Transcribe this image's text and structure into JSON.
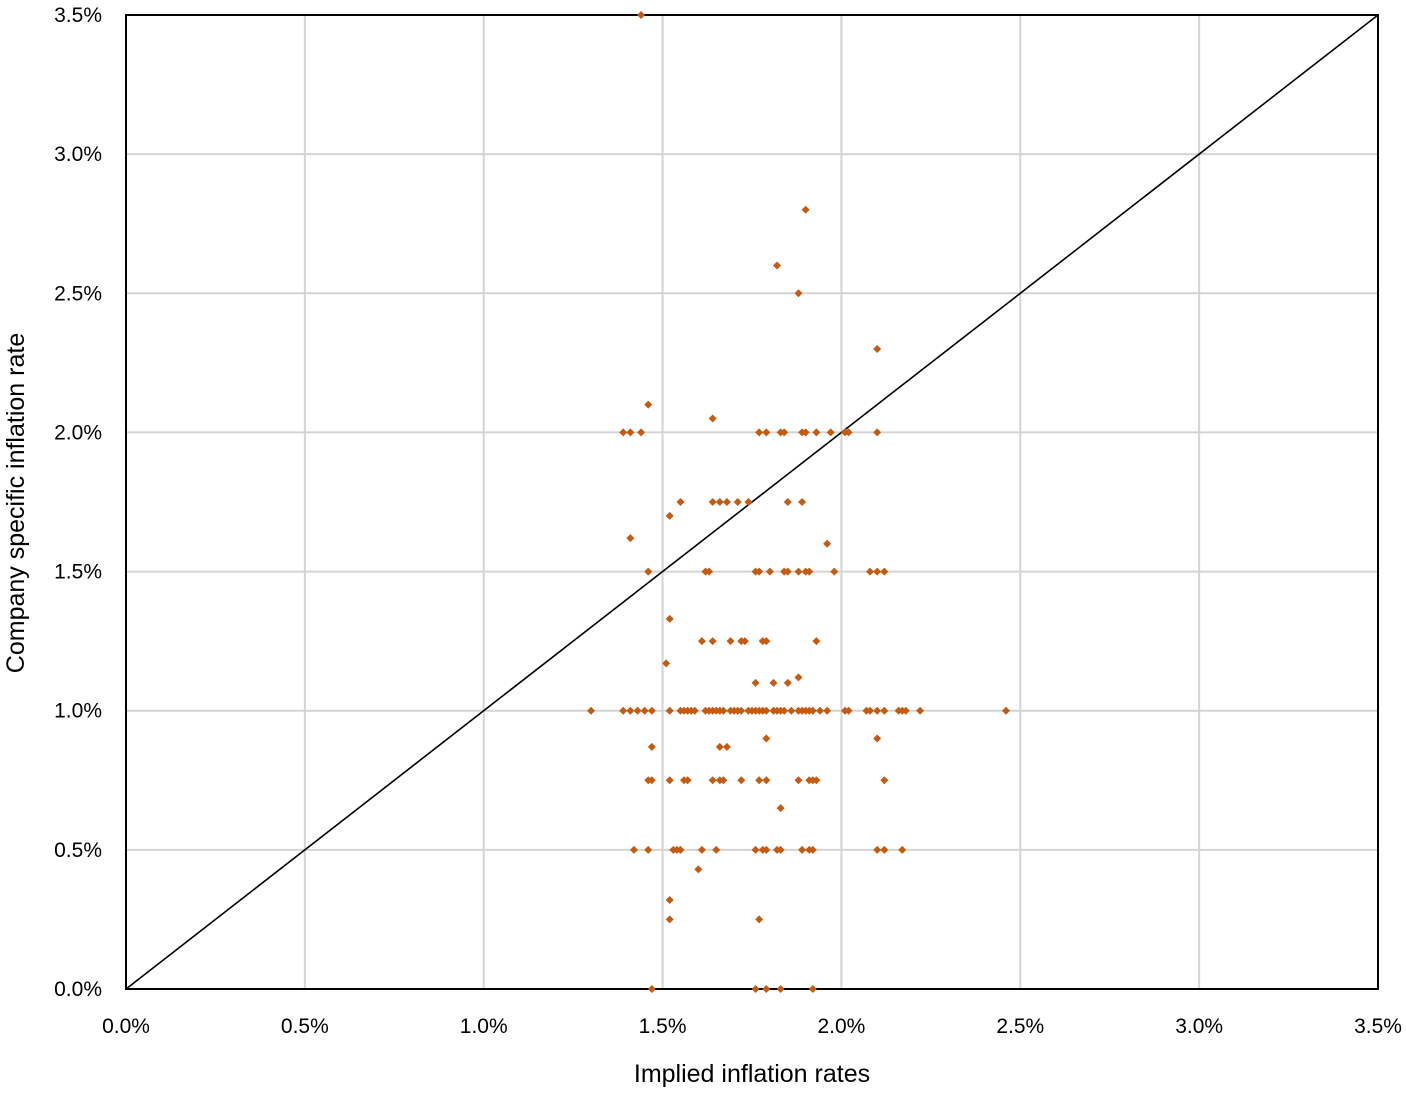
{
  "chart_data": {
    "type": "scatter",
    "xlabel": "Implied inflation rates",
    "ylabel": "Company specific inflation rate",
    "xlim": [
      0,
      3.5
    ],
    "ylim": [
      0,
      3.5
    ],
    "x_ticks": [
      "0.0%",
      "0.5%",
      "1.0%",
      "1.5%",
      "2.0%",
      "2.5%",
      "3.0%",
      "3.5%"
    ],
    "y_ticks": [
      "0.0%",
      "0.5%",
      "1.0%",
      "1.5%",
      "2.0%",
      "2.5%",
      "3.0%",
      "3.5%"
    ],
    "grid": true,
    "legend": "none",
    "reference_line": {
      "type": "y=x",
      "color": "#000000"
    },
    "marker": {
      "shape": "diamond",
      "color": "#C55A11"
    },
    "points": [
      [
        1.44,
        3.5
      ],
      [
        1.9,
        2.8
      ],
      [
        1.82,
        2.6
      ],
      [
        1.88,
        2.5
      ],
      [
        2.1,
        2.3
      ],
      [
        1.46,
        2.1
      ],
      [
        1.64,
        2.05
      ],
      [
        1.39,
        2.0
      ],
      [
        1.41,
        2.0
      ],
      [
        1.44,
        2.0
      ],
      [
        1.77,
        2.0
      ],
      [
        1.79,
        2.0
      ],
      [
        1.83,
        2.0
      ],
      [
        1.84,
        2.0
      ],
      [
        1.89,
        2.0
      ],
      [
        1.9,
        2.0
      ],
      [
        1.93,
        2.0
      ],
      [
        1.97,
        2.0
      ],
      [
        2.01,
        2.0
      ],
      [
        2.02,
        2.0
      ],
      [
        2.1,
        2.0
      ],
      [
        1.55,
        1.75
      ],
      [
        1.64,
        1.75
      ],
      [
        1.66,
        1.75
      ],
      [
        1.68,
        1.75
      ],
      [
        1.71,
        1.75
      ],
      [
        1.74,
        1.75
      ],
      [
        1.85,
        1.75
      ],
      [
        1.89,
        1.75
      ],
      [
        1.52,
        1.7
      ],
      [
        1.41,
        1.62
      ],
      [
        1.96,
        1.6
      ],
      [
        1.46,
        1.5
      ],
      [
        1.62,
        1.5
      ],
      [
        1.63,
        1.5
      ],
      [
        1.76,
        1.5
      ],
      [
        1.77,
        1.5
      ],
      [
        1.8,
        1.5
      ],
      [
        1.84,
        1.5
      ],
      [
        1.85,
        1.5
      ],
      [
        1.88,
        1.5
      ],
      [
        1.9,
        1.5
      ],
      [
        1.91,
        1.5
      ],
      [
        1.98,
        1.5
      ],
      [
        2.08,
        1.5
      ],
      [
        2.1,
        1.5
      ],
      [
        2.12,
        1.5
      ],
      [
        1.52,
        1.33
      ],
      [
        1.61,
        1.25
      ],
      [
        1.64,
        1.25
      ],
      [
        1.69,
        1.25
      ],
      [
        1.72,
        1.25
      ],
      [
        1.73,
        1.25
      ],
      [
        1.78,
        1.25
      ],
      [
        1.79,
        1.25
      ],
      [
        1.93,
        1.25
      ],
      [
        1.51,
        1.17
      ],
      [
        1.88,
        1.12
      ],
      [
        1.76,
        1.1
      ],
      [
        1.81,
        1.1
      ],
      [
        1.85,
        1.1
      ],
      [
        1.3,
        1.0
      ],
      [
        1.39,
        1.0
      ],
      [
        1.41,
        1.0
      ],
      [
        1.43,
        1.0
      ],
      [
        1.45,
        1.0
      ],
      [
        1.47,
        1.0
      ],
      [
        1.52,
        1.0
      ],
      [
        1.55,
        1.0
      ],
      [
        1.56,
        1.0
      ],
      [
        1.57,
        1.0
      ],
      [
        1.58,
        1.0
      ],
      [
        1.59,
        1.0
      ],
      [
        1.62,
        1.0
      ],
      [
        1.63,
        1.0
      ],
      [
        1.64,
        1.0
      ],
      [
        1.65,
        1.0
      ],
      [
        1.66,
        1.0
      ],
      [
        1.67,
        1.0
      ],
      [
        1.69,
        1.0
      ],
      [
        1.7,
        1.0
      ],
      [
        1.71,
        1.0
      ],
      [
        1.72,
        1.0
      ],
      [
        1.74,
        1.0
      ],
      [
        1.75,
        1.0
      ],
      [
        1.76,
        1.0
      ],
      [
        1.77,
        1.0
      ],
      [
        1.78,
        1.0
      ],
      [
        1.79,
        1.0
      ],
      [
        1.81,
        1.0
      ],
      [
        1.82,
        1.0
      ],
      [
        1.83,
        1.0
      ],
      [
        1.84,
        1.0
      ],
      [
        1.86,
        1.0
      ],
      [
        1.88,
        1.0
      ],
      [
        1.89,
        1.0
      ],
      [
        1.9,
        1.0
      ],
      [
        1.91,
        1.0
      ],
      [
        1.92,
        1.0
      ],
      [
        1.94,
        1.0
      ],
      [
        1.96,
        1.0
      ],
      [
        2.01,
        1.0
      ],
      [
        2.02,
        1.0
      ],
      [
        2.07,
        1.0
      ],
      [
        2.08,
        1.0
      ],
      [
        2.1,
        1.0
      ],
      [
        2.12,
        1.0
      ],
      [
        2.16,
        1.0
      ],
      [
        2.17,
        1.0
      ],
      [
        2.18,
        1.0
      ],
      [
        2.22,
        1.0
      ],
      [
        2.46,
        1.0
      ],
      [
        1.79,
        0.9
      ],
      [
        2.1,
        0.9
      ],
      [
        1.47,
        0.87
      ],
      [
        1.66,
        0.87
      ],
      [
        1.68,
        0.87
      ],
      [
        1.46,
        0.75
      ],
      [
        1.47,
        0.75
      ],
      [
        1.52,
        0.75
      ],
      [
        1.56,
        0.75
      ],
      [
        1.57,
        0.75
      ],
      [
        1.64,
        0.75
      ],
      [
        1.66,
        0.75
      ],
      [
        1.67,
        0.75
      ],
      [
        1.72,
        0.75
      ],
      [
        1.77,
        0.75
      ],
      [
        1.79,
        0.75
      ],
      [
        1.88,
        0.75
      ],
      [
        1.91,
        0.75
      ],
      [
        1.92,
        0.75
      ],
      [
        1.93,
        0.75
      ],
      [
        2.12,
        0.75
      ],
      [
        1.83,
        0.65
      ],
      [
        1.42,
        0.5
      ],
      [
        1.46,
        0.5
      ],
      [
        1.53,
        0.5
      ],
      [
        1.54,
        0.5
      ],
      [
        1.55,
        0.5
      ],
      [
        1.61,
        0.5
      ],
      [
        1.65,
        0.5
      ],
      [
        1.76,
        0.5
      ],
      [
        1.78,
        0.5
      ],
      [
        1.79,
        0.5
      ],
      [
        1.82,
        0.5
      ],
      [
        1.83,
        0.5
      ],
      [
        1.89,
        0.5
      ],
      [
        1.91,
        0.5
      ],
      [
        1.92,
        0.5
      ],
      [
        2.1,
        0.5
      ],
      [
        2.12,
        0.5
      ],
      [
        2.17,
        0.5
      ],
      [
        1.6,
        0.43
      ],
      [
        1.52,
        0.32
      ],
      [
        1.52,
        0.25
      ],
      [
        1.77,
        0.25
      ],
      [
        1.47,
        0.0
      ],
      [
        1.76,
        0.0
      ],
      [
        1.79,
        0.0
      ],
      [
        1.83,
        0.0
      ],
      [
        1.92,
        0.0
      ]
    ]
  }
}
